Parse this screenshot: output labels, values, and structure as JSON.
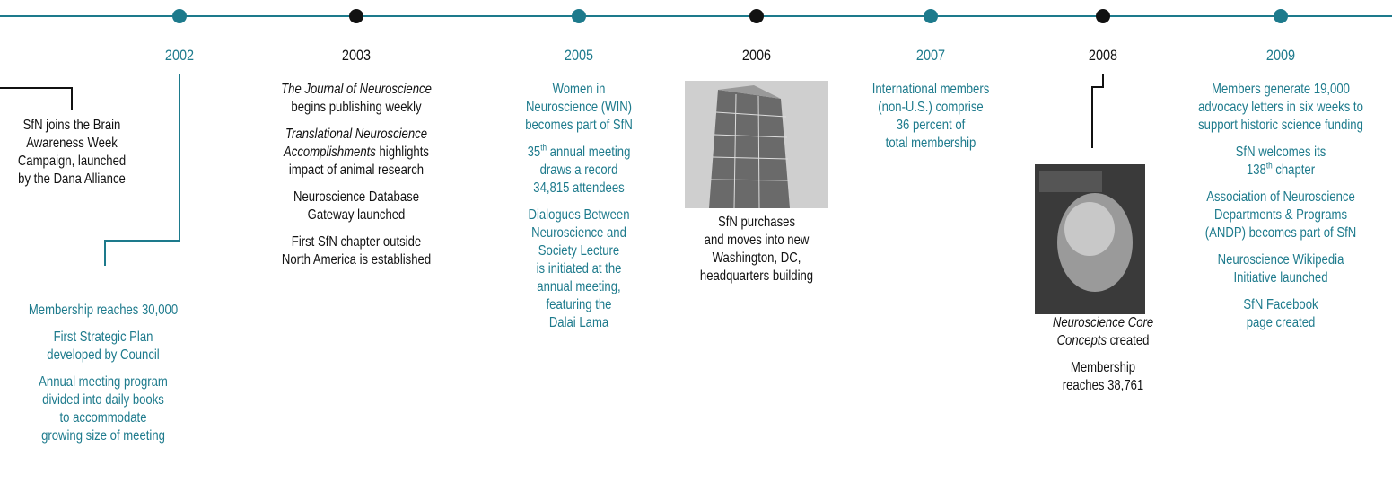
{
  "entries": [
    {
      "items": [
        [
          [
            "SfN joins the Brain"
          ],
          [
            "Awareness Week"
          ],
          [
            "Campaign, launched"
          ],
          [
            "by the Dana Alliance"
          ]
        ]
      ]
    },
    {
      "year": "2002",
      "items": [
        [
          [
            "Membership reaches 30,000"
          ]
        ],
        [
          [
            "First Strategic Plan"
          ],
          [
            "developed by Council"
          ]
        ],
        [
          [
            "Annual meeting program"
          ],
          [
            "divided into daily books"
          ],
          [
            "to accommodate"
          ],
          [
            "growing size of meeting"
          ]
        ]
      ]
    },
    {
      "year": "2003",
      "items": [
        [
          [
            "The Journal of Neuroscience"
          ],
          [
            "begins publishing weekly"
          ]
        ],
        [
          [
            "Translational Neuroscience"
          ],
          [
            "Accomplishments",
            " highlights"
          ],
          [
            "impact of animal research"
          ]
        ],
        [
          [
            "Neuroscience Database"
          ],
          [
            "Gateway launched"
          ]
        ],
        [
          [
            "First SfN chapter outside"
          ],
          [
            "North America is established"
          ]
        ]
      ]
    },
    {
      "year": "2005",
      "items": [
        [
          [
            "Women in"
          ],
          [
            "Neuroscience (WIN)"
          ],
          [
            "becomes part of SfN"
          ]
        ],
        [
          [
            "35",
            "th",
            " annual meeting"
          ],
          [
            "draws a record"
          ],
          [
            "34,815 attendees"
          ]
        ],
        [
          [
            "Dialogues Between"
          ],
          [
            "Neuroscience and"
          ],
          [
            "Society Lecture"
          ],
          [
            "is initiated at the"
          ],
          [
            "annual meeting,"
          ],
          [
            "featuring the"
          ],
          [
            "Dalai Lama"
          ]
        ]
      ]
    },
    {
      "year": "2006",
      "items": [
        [
          [
            "SfN purchases"
          ],
          [
            "and moves into new"
          ],
          [
            "Washington, DC,"
          ],
          [
            "headquarters building"
          ]
        ]
      ]
    },
    {
      "year": "2007",
      "items": [
        [
          [
            "International members"
          ],
          [
            "(non-U.S.) comprise"
          ],
          [
            "36 percent of"
          ],
          [
            "total membership"
          ]
        ]
      ]
    },
    {
      "year": "2008",
      "items": [
        [
          [
            "Neuroscience Core"
          ],
          [
            "Concepts",
            " created"
          ]
        ],
        [
          [
            "Membership"
          ],
          [
            "reaches 38,761"
          ]
        ]
      ]
    },
    {
      "year": "2009",
      "items": [
        [
          [
            "Members generate 19,000"
          ],
          [
            "advocacy letters in six weeks to"
          ],
          [
            "support historic science funding"
          ]
        ],
        [
          [
            "SfN welcomes its"
          ],
          [
            "138",
            "th",
            " chapter"
          ]
        ],
        [
          [
            "Association of Neuroscience"
          ],
          [
            "Departments & Programs"
          ],
          [
            "(ANDP) becomes part of SfN"
          ]
        ],
        [
          [
            "Neuroscience Wikipedia"
          ],
          [
            "Initiative launched"
          ]
        ],
        [
          [
            "SfN Facebook"
          ],
          [
            "page created"
          ]
        ]
      ]
    }
  ]
}
